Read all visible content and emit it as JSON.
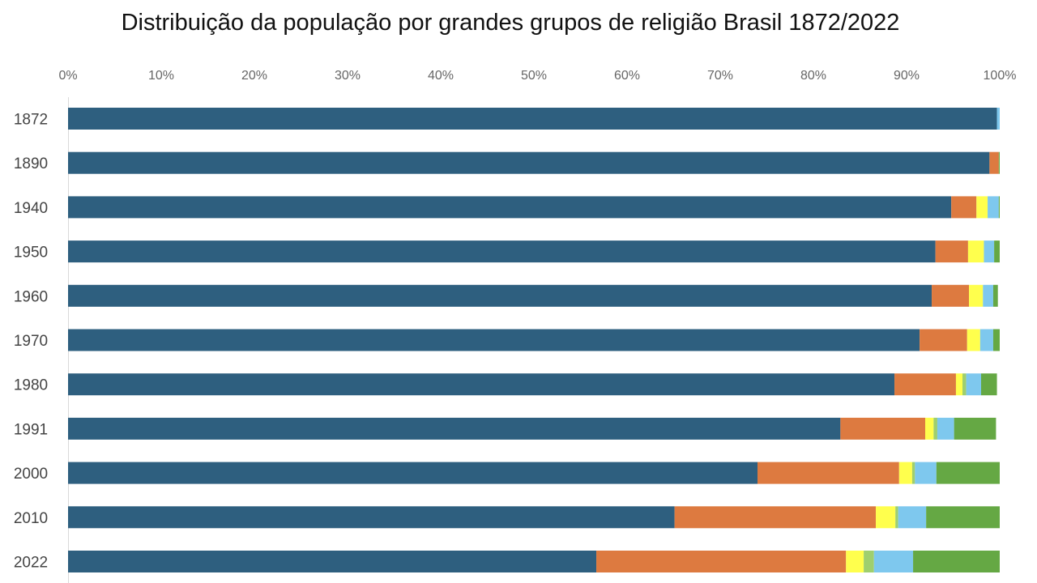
{
  "chart_data": {
    "type": "bar",
    "orientation": "horizontal",
    "stacked": "percent",
    "title": "Distribuição da população por grandes grupos de religião Brasil 1872/2022",
    "categories": [
      "1872",
      "1890",
      "1940",
      "1950",
      "1960",
      "1970",
      "1980",
      "1991",
      "2000",
      "2010",
      "2022"
    ],
    "x_ticks": [
      "0%",
      "10%",
      "20%",
      "30%",
      "40%",
      "50%",
      "60%",
      "70%",
      "80%",
      "90%",
      "100%"
    ],
    "xlim": [
      0,
      100
    ],
    "x_axis_position": "top",
    "grid": false,
    "legend": "none",
    "colors": [
      "#2e5f7f",
      "#dd7a40",
      "#ffff4d",
      "#9fcf6e",
      "#7ec8ee",
      "#65a844"
    ],
    "series": [
      {
        "values": [
          99.7,
          98.9,
          94.8,
          93.1,
          92.7,
          91.4,
          88.7,
          82.9,
          74.0,
          65.1,
          56.7
        ]
      },
      {
        "values": [
          0.0,
          1.0,
          2.7,
          3.5,
          4.0,
          5.1,
          6.6,
          9.1,
          15.2,
          21.6,
          26.8
        ]
      },
      {
        "values": [
          0.0,
          0.0,
          1.2,
          1.7,
          1.5,
          1.4,
          0.7,
          0.9,
          1.4,
          2.1,
          1.9
        ]
      },
      {
        "values": [
          0.0,
          0.0,
          0.0,
          0.0,
          0.0,
          0.0,
          0.4,
          0.4,
          0.3,
          0.3,
          1.1
        ]
      },
      {
        "values": [
          0.3,
          0.0,
          1.2,
          1.1,
          1.1,
          1.4,
          1.6,
          1.8,
          2.3,
          3.0,
          4.2
        ]
      },
      {
        "values": [
          0.0,
          0.1,
          0.1,
          0.6,
          0.5,
          0.7,
          1.7,
          4.5,
          6.8,
          7.9,
          9.3
        ]
      }
    ]
  }
}
